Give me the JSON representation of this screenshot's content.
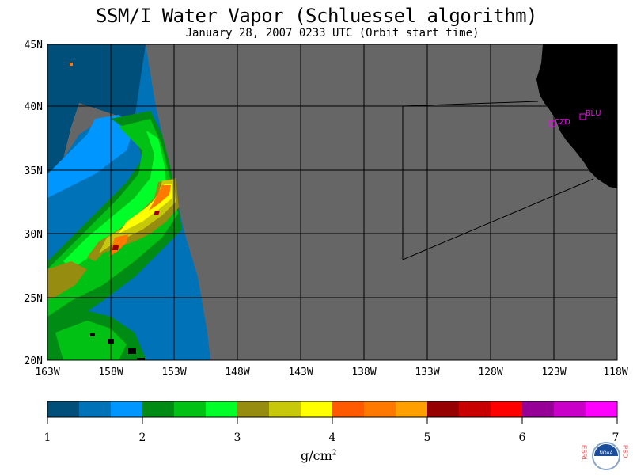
{
  "title": "SSM/I Water Vapor (Schluessel algorithm)",
  "subtitle": "January 28, 2007  0233 UTC  (Orbit start time)",
  "map": {
    "lat_labels": [
      "45N",
      "40N",
      "35N",
      "30N",
      "25N",
      "20N"
    ],
    "lon_labels": [
      "163W",
      "158W",
      "153W",
      "148W",
      "143W",
      "138W",
      "133W",
      "128W",
      "123W",
      "118W"
    ],
    "stations": [
      {
        "id": "CZD",
        "color": "#ff00ff"
      },
      {
        "id": "BLU",
        "color": "#ff00ff"
      }
    ],
    "colors": {
      "land": "#000000",
      "nodata": "#666666"
    }
  },
  "legend": {
    "unit_base": "g/cm",
    "unit_exp": "2",
    "ticks": [
      "1",
      "2",
      "3",
      "4",
      "5",
      "6",
      "7"
    ],
    "colors": [
      "#004f7a",
      "#0072b8",
      "#0096ff",
      "#008c14",
      "#00c114",
      "#00ff28",
      "#968c0f",
      "#c8c80a",
      "#ffff00",
      "#ff5a00",
      "#ff7800",
      "#ffa000",
      "#960000",
      "#c80000",
      "#ff0000",
      "#960096",
      "#c800c8",
      "#ff00ff"
    ]
  },
  "logo": {
    "left_text": "ESRL",
    "right_text": "PSD",
    "center_text": "NOAA"
  }
}
